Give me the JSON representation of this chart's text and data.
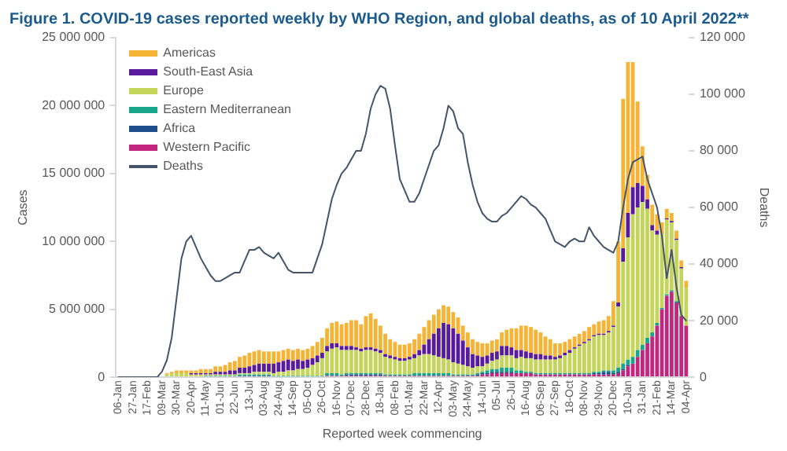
{
  "chart_data": {
    "type": "bar",
    "title": "Figure 1. COVID-19 cases reported weekly by WHO Region, and global deaths, as of 10 April 2022**",
    "xlabel": "Reported week commencing",
    "ylabel": "Cases",
    "y2label": "Deaths",
    "stacked": true,
    "legend": "top left",
    "marker": "none",
    "categories": [
      "06-Jan",
      null,
      null,
      "27-Jan",
      null,
      null,
      "17-Feb",
      null,
      null,
      "09-Mar",
      null,
      null,
      "30-Mar",
      null,
      null,
      "20-Apr",
      null,
      null,
      "11-May",
      null,
      null,
      "01-Jun",
      null,
      null,
      "22-Jun",
      null,
      null,
      "13-Jul",
      null,
      null,
      "03-Aug",
      null,
      null,
      "24-Aug",
      null,
      null,
      "14-Sep",
      null,
      null,
      "05-Oct",
      null,
      null,
      "26-Oct",
      null,
      null,
      "16-Nov",
      null,
      null,
      "07-Dec",
      null,
      null,
      "28-Dec",
      null,
      null,
      "18-Jan",
      null,
      null,
      "08-Feb",
      null,
      null,
      "01-Mar",
      null,
      null,
      "22-Mar",
      null,
      null,
      "12-Apr",
      null,
      null,
      "03-May",
      null,
      null,
      "24-May",
      null,
      null,
      "14-Jun",
      null,
      null,
      "05-Jul",
      null,
      null,
      "26-Jul",
      null,
      null,
      "16-Aug",
      null,
      null,
      "06-Sep",
      null,
      null,
      "27-Sep",
      null,
      null,
      "18-Oct",
      null,
      null,
      "08-Nov",
      null,
      null,
      "29-Nov",
      null,
      null,
      "20-Dec",
      null,
      null,
      "10-Jan",
      null,
      null,
      "31-Jan",
      null,
      null,
      "21-Feb",
      null,
      null,
      "14-Mar",
      null,
      null,
      "04-Apr"
    ],
    "ylim": [
      0,
      25000000
    ],
    "yticks": [
      0,
      {
        "value": 5000000,
        "label": "5 000 000"
      },
      {
        "value": 10000000,
        "label": "10 000 000"
      },
      {
        "value": 15000000,
        "label": "15 000 000"
      },
      {
        "value": 20000000,
        "label": "20 000 000"
      },
      {
        "value": 25000000,
        "label": "25 000 000"
      }
    ],
    "y2lim": [
      0,
      120000
    ],
    "y2ticks": [
      0,
      {
        "value": 20000,
        "label": "20 000"
      },
      {
        "value": 40000,
        "label": "40 000"
      },
      {
        "value": 60000,
        "label": "60 000"
      },
      {
        "value": 80000,
        "label": "80 000"
      },
      {
        "value": 100000,
        "label": "100 000"
      },
      {
        "value": 120000,
        "label": "120 000"
      }
    ],
    "series": [
      {
        "name": "Western Pacific",
        "color": "#c2267e",
        "values": [
          0,
          0,
          0,
          0,
          0,
          0,
          0,
          0,
          0,
          0,
          0,
          0,
          0,
          0,
          0,
          0,
          0,
          0,
          0,
          0,
          0,
          0,
          0,
          0,
          0,
          0,
          0,
          0,
          0,
          0,
          0,
          0,
          0,
          0,
          0,
          0,
          0,
          0,
          0,
          0,
          0,
          0,
          0,
          100000,
          100000,
          100000,
          100000,
          100000,
          100000,
          100000,
          100000,
          100000,
          100000,
          100000,
          100000,
          100000,
          100000,
          100000,
          100000,
          100000,
          100000,
          100000,
          100000,
          100000,
          100000,
          100000,
          100000,
          100000,
          100000,
          100000,
          100000,
          100000,
          100000,
          100000,
          100000,
          200000,
          200000,
          300000,
          300000,
          300000,
          300000,
          300000,
          300000,
          300000,
          300000,
          300000,
          200000,
          200000,
          200000,
          200000,
          200000,
          200000,
          200000,
          200000,
          200000,
          200000,
          200000,
          200000,
          200000,
          200000,
          200000,
          200000,
          200000,
          300000,
          500000,
          800000,
          1000000,
          1500000,
          2000000,
          2500000,
          3000000,
          3800000,
          5000000,
          6000000,
          6300000,
          5500000,
          4500000,
          3800000
        ]
      },
      {
        "name": "Africa",
        "color": "#1f4e8c",
        "values": [
          0,
          0,
          0,
          0,
          0,
          0,
          0,
          0,
          0,
          0,
          0,
          0,
          0,
          0,
          0,
          0,
          0,
          0,
          0,
          0,
          0,
          0,
          0,
          0,
          0,
          100000,
          100000,
          100000,
          100000,
          100000,
          100000,
          100000,
          0,
          0,
          0,
          0,
          0,
          0,
          0,
          0,
          0,
          0,
          0,
          0,
          0,
          0,
          0,
          100000,
          100000,
          100000,
          100000,
          100000,
          100000,
          100000,
          100000,
          0,
          0,
          0,
          0,
          0,
          0,
          0,
          0,
          0,
          0,
          0,
          0,
          0,
          0,
          0,
          0,
          0,
          0,
          0,
          100000,
          100000,
          100000,
          100000,
          100000,
          100000,
          100000,
          100000,
          0,
          0,
          0,
          0,
          0,
          0,
          0,
          0,
          0,
          0,
          0,
          0,
          0,
          0,
          0,
          0,
          100000,
          100000,
          200000,
          200000,
          100000,
          100000,
          100000,
          100000,
          0,
          0,
          0,
          0,
          0,
          0,
          0,
          0,
          0,
          0,
          0,
          0
        ]
      },
      {
        "name": "Eastern Mediterranean",
        "color": "#17a68a",
        "values": [
          0,
          0,
          0,
          0,
          0,
          0,
          0,
          0,
          0,
          0,
          0,
          0,
          0,
          0,
          0,
          0,
          0,
          0,
          100000,
          100000,
          100000,
          100000,
          100000,
          100000,
          100000,
          100000,
          100000,
          100000,
          100000,
          100000,
          100000,
          100000,
          100000,
          100000,
          100000,
          100000,
          100000,
          100000,
          100000,
          100000,
          100000,
          100000,
          100000,
          200000,
          200000,
          200000,
          100000,
          100000,
          100000,
          100000,
          100000,
          100000,
          100000,
          100000,
          100000,
          100000,
          100000,
          100000,
          100000,
          100000,
          100000,
          200000,
          200000,
          200000,
          200000,
          200000,
          200000,
          200000,
          200000,
          100000,
          100000,
          100000,
          100000,
          100000,
          100000,
          100000,
          200000,
          200000,
          200000,
          300000,
          300000,
          300000,
          200000,
          200000,
          100000,
          100000,
          100000,
          100000,
          100000,
          100000,
          100000,
          100000,
          100000,
          100000,
          100000,
          100000,
          100000,
          100000,
          100000,
          100000,
          100000,
          100000,
          200000,
          300000,
          400000,
          400000,
          500000,
          500000,
          400000,
          400000,
          300000,
          200000,
          100000,
          100000,
          100000,
          100000,
          0,
          0
        ]
      },
      {
        "name": "Europe",
        "color": "#c3d55b",
        "values": [
          0,
          0,
          0,
          0,
          0,
          0,
          0,
          0,
          0,
          0,
          200000,
          300000,
          300000,
          300000,
          300000,
          200000,
          200000,
          200000,
          100000,
          100000,
          100000,
          100000,
          100000,
          100000,
          100000,
          100000,
          100000,
          100000,
          200000,
          200000,
          200000,
          200000,
          200000,
          300000,
          300000,
          400000,
          400000,
          500000,
          500000,
          600000,
          800000,
          1000000,
          1300000,
          1600000,
          1800000,
          1900000,
          1800000,
          1700000,
          1700000,
          1700000,
          1600000,
          1700000,
          1700000,
          1600000,
          1500000,
          1300000,
          1200000,
          1100000,
          1000000,
          1000000,
          1100000,
          1100000,
          1300000,
          1400000,
          1400000,
          1300000,
          1200000,
          1100000,
          1000000,
          900000,
          800000,
          700000,
          600000,
          500000,
          500000,
          400000,
          500000,
          600000,
          700000,
          900000,
          900000,
          900000,
          900000,
          1000000,
          1000000,
          1000000,
          1000000,
          1000000,
          1000000,
          1000000,
          1000000,
          1100000,
          1300000,
          1500000,
          1800000,
          2000000,
          2200000,
          2400000,
          2600000,
          2700000,
          2600000,
          2800000,
          3200000,
          4500000,
          7500000,
          9000000,
          10500000,
          10500000,
          10500000,
          9500000,
          7500000,
          6500000,
          5500000,
          5500000,
          5000000,
          4500000,
          3500000,
          2800000
        ]
      },
      {
        "name": "South-East Asia",
        "color": "#5a1a9e",
        "values": [
          0,
          0,
          0,
          0,
          0,
          0,
          0,
          0,
          0,
          0,
          0,
          0,
          0,
          0,
          0,
          100000,
          100000,
          100000,
          100000,
          100000,
          200000,
          200000,
          200000,
          300000,
          300000,
          400000,
          400000,
          500000,
          500000,
          600000,
          600000,
          600000,
          700000,
          700000,
          800000,
          800000,
          700000,
          700000,
          600000,
          600000,
          500000,
          500000,
          400000,
          400000,
          400000,
          300000,
          300000,
          300000,
          300000,
          200000,
          200000,
          200000,
          200000,
          200000,
          200000,
          200000,
          200000,
          200000,
          200000,
          200000,
          200000,
          300000,
          400000,
          700000,
          1100000,
          1600000,
          2100000,
          2600000,
          2600000,
          2500000,
          2200000,
          1800000,
          1400000,
          1000000,
          800000,
          700000,
          600000,
          600000,
          600000,
          700000,
          700000,
          600000,
          600000,
          500000,
          500000,
          400000,
          400000,
          400000,
          300000,
          300000,
          200000,
          200000,
          200000,
          200000,
          100000,
          100000,
          100000,
          100000,
          100000,
          100000,
          100000,
          100000,
          100000,
          300000,
          1000000,
          1800000,
          2000000,
          1800000,
          1200000,
          700000,
          400000,
          300000,
          0,
          100000,
          100000,
          100000,
          100000,
          0
        ]
      },
      {
        "name": "Americas",
        "color": "#f6b436",
        "values": [
          0,
          0,
          0,
          0,
          0,
          0,
          0,
          0,
          0,
          0,
          100000,
          100000,
          200000,
          200000,
          200000,
          200000,
          200000,
          300000,
          300000,
          300000,
          400000,
          400000,
          500000,
          600000,
          700000,
          800000,
          900000,
          1000000,
          1000000,
          1000000,
          900000,
          900000,
          900000,
          800000,
          800000,
          800000,
          800000,
          800000,
          800000,
          800000,
          900000,
          1000000,
          1100000,
          1300000,
          1500000,
          1600000,
          1600000,
          1700000,
          1900000,
          2000000,
          1800000,
          2300000,
          2500000,
          2200000,
          1800000,
          1500000,
          1200000,
          1100000,
          1000000,
          1000000,
          1000000,
          1100000,
          1200000,
          1300000,
          1400000,
          1400000,
          1400000,
          1300000,
          1300000,
          1200000,
          1200000,
          1100000,
          1100000,
          1100000,
          1000000,
          1000000,
          900000,
          900000,
          900000,
          1000000,
          1200000,
          1400000,
          1600000,
          1800000,
          1900000,
          1900000,
          1800000,
          1600000,
          1400000,
          1200000,
          1000000,
          900000,
          800000,
          800000,
          800000,
          800000,
          800000,
          900000,
          800000,
          900000,
          1000000,
          1100000,
          1800000,
          4500000,
          11000000,
          11100000,
          9200000,
          6000000,
          2900000,
          1800000,
          1500000,
          1200000,
          800000,
          700000,
          600000,
          600000,
          500000,
          500000
        ]
      },
      {
        "name": "Deaths",
        "type": "line",
        "axis": "y2",
        "color": "#44546a",
        "values": [
          0,
          0,
          0,
          0,
          0,
          0,
          0,
          0,
          0,
          2000,
          6000,
          14000,
          28000,
          42000,
          48000,
          50000,
          46000,
          42000,
          39000,
          36000,
          34000,
          34000,
          35000,
          36000,
          37000,
          37000,
          41000,
          45000,
          45000,
          46000,
          44000,
          43000,
          42000,
          44000,
          41000,
          38000,
          37000,
          37000,
          37000,
          37000,
          37000,
          42000,
          47000,
          55000,
          63000,
          68000,
          72000,
          74000,
          77000,
          80000,
          80000,
          86000,
          95000,
          100000,
          103000,
          102000,
          95000,
          82000,
          70000,
          66000,
          62000,
          62000,
          65000,
          70000,
          75000,
          80000,
          82000,
          88000,
          96000,
          94000,
          88000,
          86000,
          76000,
          68000,
          62000,
          58000,
          56000,
          55000,
          55000,
          57000,
          58000,
          60000,
          62000,
          64000,
          63000,
          61000,
          60000,
          58000,
          56000,
          52000,
          48000,
          47000,
          46000,
          48000,
          49000,
          48000,
          48000,
          53000,
          50000,
          48000,
          46000,
          45000,
          44000,
          48000,
          60000,
          70000,
          76000,
          77000,
          78000,
          70000,
          65000,
          60000,
          50000,
          35000,
          45000,
          32000,
          22000,
          20000
        ]
      }
    ]
  }
}
